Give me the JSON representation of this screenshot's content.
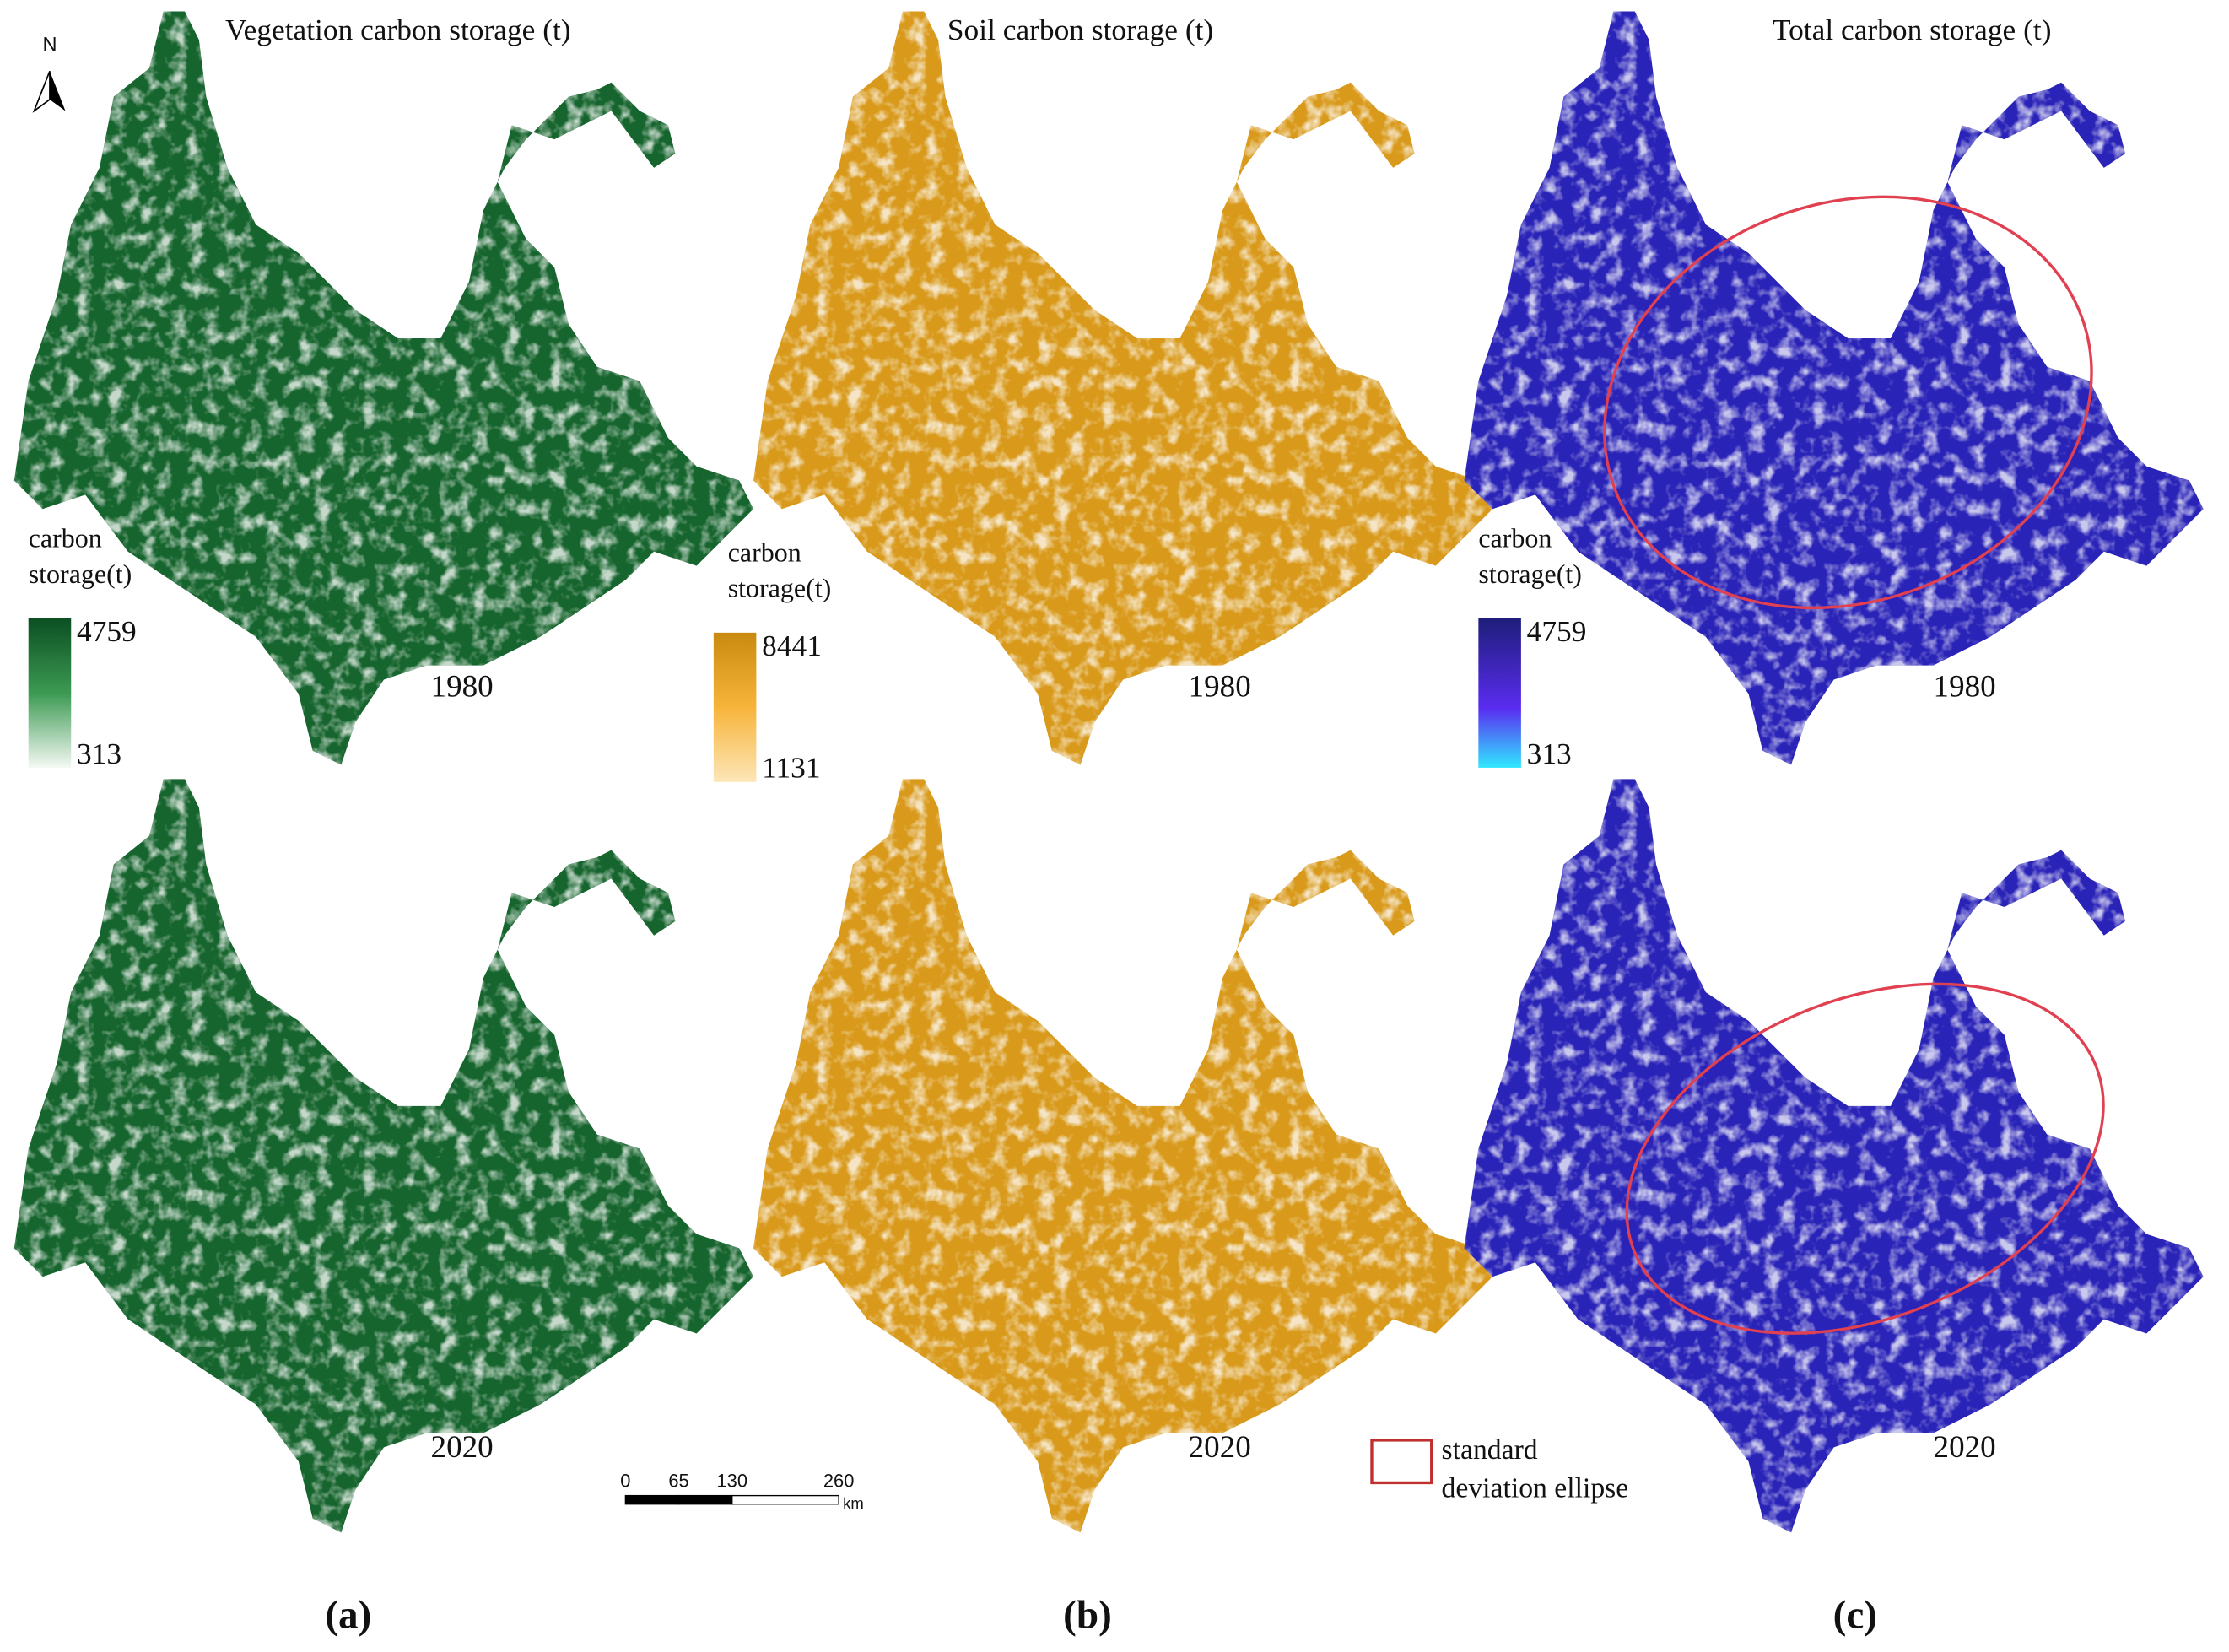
{
  "north_label": "N",
  "panels": [
    {
      "title": "Vegetation carbon storage (t)",
      "label": "(a)",
      "years": [
        "1980",
        "2020"
      ],
      "legend": {
        "title": [
          "carbon",
          "storage(t)"
        ],
        "max": 4759,
        "min": 313
      }
    },
    {
      "title": "Soil carbon storage (t)",
      "label": "(b)",
      "years": [
        "1980",
        "2020"
      ],
      "legend": {
        "title": [
          "carbon",
          "storage(t)"
        ],
        "max": 8441,
        "min": 1131
      }
    },
    {
      "title": "Total carbon storage (t)",
      "label": "(c)",
      "years": [
        "1980",
        "2020"
      ],
      "legend": {
        "title": [
          "carbon",
          "storage(t)"
        ],
        "max": 4759,
        "min": 313
      }
    }
  ],
  "scale_bar": {
    "ticks": [
      0,
      65,
      130,
      260
    ],
    "unit": "km"
  },
  "ellipse_legend": [
    "standard",
    "deviation ellipse"
  ]
}
